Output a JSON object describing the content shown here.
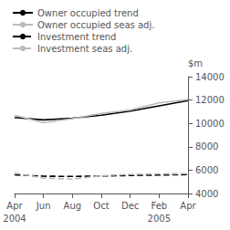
{
  "chart_data": {
    "type": "line",
    "title": "",
    "ylabel": "$m",
    "categories": [
      "Apr",
      "Jun",
      "Aug",
      "Oct",
      "Dec",
      "Feb",
      "Apr"
    ],
    "series": [
      {
        "name": "Owner occupied trend",
        "color": "#000000",
        "line_style": "solid",
        "values": [
          10500,
          10300,
          10450,
          10700,
          11050,
          11500,
          11950
        ]
      },
      {
        "name": "Owner occupied seas adj.",
        "color": "#bbbbbb",
        "line_style": "solid",
        "values": [
          10700,
          10050,
          10400,
          10850,
          11150,
          11750,
          12050
        ]
      },
      {
        "name": "Investment trend",
        "color": "#000000",
        "line_style": "dashed",
        "values": [
          5600,
          5480,
          5460,
          5500,
          5540,
          5580,
          5620
        ]
      },
      {
        "name": "Investment seas adj.",
        "color": "#bbbbbb",
        "line_style": "dashed",
        "values": [
          5750,
          5320,
          5230,
          5520,
          5640,
          5680,
          5700
        ]
      }
    ],
    "ylim": [
      4000,
      14000
    ],
    "yticks": [
      4000,
      6000,
      8000,
      10000,
      12000,
      14000
    ],
    "annotations": [
      {
        "text": "2004",
        "x": 0
      },
      {
        "text": "2005",
        "x": 5
      }
    ],
    "grid": false,
    "legend": "upper left"
  }
}
